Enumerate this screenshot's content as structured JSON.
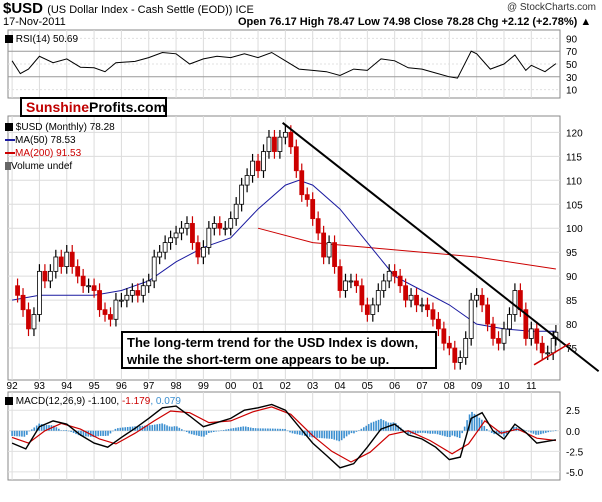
{
  "header": {
    "symbol": "$USD",
    "name": "(US Dollar Index - Cash Settle (EOD)) ICE",
    "date": "17-Nov-2011",
    "ohlc": "Open 76.17  High 78.47  Low 74.98  Close 78.28  Chg +2.12 (+2.78%) ▲",
    "source": "@ StockCharts.com"
  },
  "logo": {
    "part1": "Sunshine",
    "part2": "Profits.com"
  },
  "note": {
    "line1": "The long-term trend for the USD Index is down,",
    "line2": "while the short-term one appears to be up."
  },
  "rsi": {
    "label": "RSI(14) 50.69",
    "ticks": [
      "90",
      "70",
      "50",
      "30",
      "10"
    ]
  },
  "legend": {
    "main": "$USD (Monthly) 78.28",
    "ma50": "MA(50) 78.53",
    "ma200": "MA(200) 91.53",
    "volume": "Volume undef"
  },
  "macd": {
    "label": "MACD(12,26,9) -1.100, ",
    "signal": "-1.179",
    "hist": ", 0.079",
    "ticks": [
      "2.5",
      "0.0",
      "-2.5",
      "-5.0"
    ]
  },
  "colors": {
    "up": "#000000",
    "down": "#cc0000",
    "ma50": "#1a1aa0",
    "ma200": "#cc0000",
    "hist": "#3b8fd0",
    "trend": "#000000"
  },
  "chart_data": {
    "type": "candlestick",
    "title": "$USD (US Dollar Index - Cash Settle (EOD)) ICE",
    "x_ticks": [
      "92",
      "93",
      "94",
      "95",
      "96",
      "97",
      "98",
      "99",
      "00",
      "01",
      "02",
      "03",
      "04",
      "05",
      "06",
      "07",
      "08",
      "09",
      "10",
      "11"
    ],
    "y_ticks": [
      "120",
      "115",
      "110",
      "105",
      "100",
      "95",
      "90",
      "85",
      "80",
      "75"
    ],
    "ylim": [
      70,
      123
    ],
    "grid": true,
    "trend_line_down": [
      [
        2001.9,
        122
      ],
      [
        2012.0,
        76
      ]
    ],
    "trend_line_up": [
      [
        2011.1,
        71.5
      ],
      [
        2011.9,
        76
      ]
    ],
    "close_series": [
      {
        "x": 1992.0,
        "y": 88
      },
      {
        "x": 1992.2,
        "y": 86
      },
      {
        "x": 1992.4,
        "y": 83
      },
      {
        "x": 1992.6,
        "y": 79
      },
      {
        "x": 1992.8,
        "y": 82
      },
      {
        "x": 1993.0,
        "y": 91
      },
      {
        "x": 1993.2,
        "y": 89
      },
      {
        "x": 1993.4,
        "y": 91
      },
      {
        "x": 1993.6,
        "y": 94
      },
      {
        "x": 1993.8,
        "y": 92
      },
      {
        "x": 1994.0,
        "y": 95
      },
      {
        "x": 1994.2,
        "y": 92
      },
      {
        "x": 1994.4,
        "y": 90
      },
      {
        "x": 1994.6,
        "y": 88
      },
      {
        "x": 1994.8,
        "y": 88
      },
      {
        "x": 1995.0,
        "y": 87
      },
      {
        "x": 1995.2,
        "y": 83
      },
      {
        "x": 1995.4,
        "y": 82
      },
      {
        "x": 1995.6,
        "y": 81
      },
      {
        "x": 1995.8,
        "y": 85
      },
      {
        "x": 1996.0,
        "y": 85
      },
      {
        "x": 1996.2,
        "y": 86
      },
      {
        "x": 1996.4,
        "y": 87
      },
      {
        "x": 1996.6,
        "y": 86
      },
      {
        "x": 1996.8,
        "y": 88
      },
      {
        "x": 1997.0,
        "y": 89
      },
      {
        "x": 1997.2,
        "y": 94
      },
      {
        "x": 1997.4,
        "y": 95
      },
      {
        "x": 1997.6,
        "y": 97
      },
      {
        "x": 1997.8,
        "y": 98
      },
      {
        "x": 1998.0,
        "y": 99
      },
      {
        "x": 1998.2,
        "y": 100
      },
      {
        "x": 1998.4,
        "y": 101
      },
      {
        "x": 1998.6,
        "y": 97
      },
      {
        "x": 1998.8,
        "y": 94
      },
      {
        "x": 1999.0,
        "y": 96
      },
      {
        "x": 1999.2,
        "y": 100
      },
      {
        "x": 1999.4,
        "y": 101
      },
      {
        "x": 1999.6,
        "y": 100
      },
      {
        "x": 1999.8,
        "y": 100
      },
      {
        "x": 2000.0,
        "y": 102
      },
      {
        "x": 2000.2,
        "y": 105
      },
      {
        "x": 2000.4,
        "y": 109
      },
      {
        "x": 2000.6,
        "y": 111
      },
      {
        "x": 2000.8,
        "y": 114
      },
      {
        "x": 2001.0,
        "y": 112
      },
      {
        "x": 2001.2,
        "y": 116
      },
      {
        "x": 2001.4,
        "y": 119
      },
      {
        "x": 2001.6,
        "y": 116
      },
      {
        "x": 2001.8,
        "y": 119
      },
      {
        "x": 2002.0,
        "y": 120
      },
      {
        "x": 2002.2,
        "y": 117
      },
      {
        "x": 2002.4,
        "y": 112
      },
      {
        "x": 2002.6,
        "y": 107
      },
      {
        "x": 2002.8,
        "y": 106
      },
      {
        "x": 2003.0,
        "y": 102
      },
      {
        "x": 2003.2,
        "y": 99
      },
      {
        "x": 2003.4,
        "y": 94
      },
      {
        "x": 2003.6,
        "y": 97
      },
      {
        "x": 2003.8,
        "y": 92
      },
      {
        "x": 2004.0,
        "y": 87
      },
      {
        "x": 2004.2,
        "y": 89
      },
      {
        "x": 2004.4,
        "y": 89
      },
      {
        "x": 2004.6,
        "y": 88
      },
      {
        "x": 2004.8,
        "y": 84
      },
      {
        "x": 2005.0,
        "y": 82
      },
      {
        "x": 2005.2,
        "y": 84
      },
      {
        "x": 2005.4,
        "y": 87
      },
      {
        "x": 2005.6,
        "y": 89
      },
      {
        "x": 2005.8,
        "y": 91
      },
      {
        "x": 2006.0,
        "y": 90
      },
      {
        "x": 2006.2,
        "y": 88
      },
      {
        "x": 2006.4,
        "y": 85
      },
      {
        "x": 2006.6,
        "y": 86
      },
      {
        "x": 2006.8,
        "y": 84
      },
      {
        "x": 2007.0,
        "y": 84
      },
      {
        "x": 2007.2,
        "y": 83
      },
      {
        "x": 2007.4,
        "y": 81
      },
      {
        "x": 2007.6,
        "y": 79
      },
      {
        "x": 2007.8,
        "y": 76
      },
      {
        "x": 2008.0,
        "y": 75
      },
      {
        "x": 2008.2,
        "y": 72
      },
      {
        "x": 2008.4,
        "y": 73
      },
      {
        "x": 2008.6,
        "y": 77
      },
      {
        "x": 2008.8,
        "y": 85
      },
      {
        "x": 2009.0,
        "y": 86
      },
      {
        "x": 2009.2,
        "y": 84
      },
      {
        "x": 2009.4,
        "y": 80
      },
      {
        "x": 2009.6,
        "y": 77
      },
      {
        "x": 2009.8,
        "y": 76
      },
      {
        "x": 2010.0,
        "y": 79
      },
      {
        "x": 2010.2,
        "y": 82
      },
      {
        "x": 2010.4,
        "y": 87
      },
      {
        "x": 2010.6,
        "y": 83
      },
      {
        "x": 2010.8,
        "y": 77
      },
      {
        "x": 2011.0,
        "y": 79
      },
      {
        "x": 2011.2,
        "y": 76
      },
      {
        "x": 2011.4,
        "y": 74
      },
      {
        "x": 2011.6,
        "y": 74
      },
      {
        "x": 2011.8,
        "y": 77
      },
      {
        "x": 2011.9,
        "y": 78.3
      }
    ],
    "ma50": [
      {
        "x": 1992.0,
        "y": 85
      },
      {
        "x": 1993.0,
        "y": 86
      },
      {
        "x": 1994.0,
        "y": 86
      },
      {
        "x": 1995.0,
        "y": 86
      },
      {
        "x": 1996.0,
        "y": 87
      },
      {
        "x": 1997.0,
        "y": 89
      },
      {
        "x": 1998.0,
        "y": 93
      },
      {
        "x": 1999.0,
        "y": 96
      },
      {
        "x": 2000.0,
        "y": 98
      },
      {
        "x": 2001.0,
        "y": 104
      },
      {
        "x": 2002.0,
        "y": 109
      },
      {
        "x": 2002.5,
        "y": 110
      },
      {
        "x": 2003.0,
        "y": 109
      },
      {
        "x": 2004.0,
        "y": 104
      },
      {
        "x": 2005.0,
        "y": 97
      },
      {
        "x": 2006.0,
        "y": 90
      },
      {
        "x": 2007.0,
        "y": 87
      },
      {
        "x": 2008.0,
        "y": 84
      },
      {
        "x": 2009.0,
        "y": 80
      },
      {
        "x": 2010.0,
        "y": 79
      },
      {
        "x": 2011.0,
        "y": 78.5
      },
      {
        "x": 2011.9,
        "y": 78.5
      }
    ],
    "ma200": [
      {
        "x": 2001.0,
        "y": 100
      },
      {
        "x": 2003.0,
        "y": 97
      },
      {
        "x": 2005.0,
        "y": 96
      },
      {
        "x": 2007.0,
        "y": 95
      },
      {
        "x": 2009.0,
        "y": 94
      },
      {
        "x": 2011.9,
        "y": 91.5
      }
    ],
    "rsi": [
      {
        "x": 1992.0,
        "y": 55
      },
      {
        "x": 1992.3,
        "y": 35
      },
      {
        "x": 1992.6,
        "y": 42
      },
      {
        "x": 1993.0,
        "y": 62
      },
      {
        "x": 1993.5,
        "y": 52
      },
      {
        "x": 1994.0,
        "y": 58
      },
      {
        "x": 1994.5,
        "y": 45
      },
      {
        "x": 1995.0,
        "y": 44
      },
      {
        "x": 1995.4,
        "y": 38
      },
      {
        "x": 1995.8,
        "y": 52
      },
      {
        "x": 1996.5,
        "y": 54
      },
      {
        "x": 1997.0,
        "y": 60
      },
      {
        "x": 1997.5,
        "y": 68
      },
      {
        "x": 1998.0,
        "y": 66
      },
      {
        "x": 1998.5,
        "y": 50
      },
      {
        "x": 1999.0,
        "y": 58
      },
      {
        "x": 1999.5,
        "y": 62
      },
      {
        "x": 2000.0,
        "y": 60
      },
      {
        "x": 2000.5,
        "y": 66
      },
      {
        "x": 2001.0,
        "y": 60
      },
      {
        "x": 2001.5,
        "y": 68
      },
      {
        "x": 2002.0,
        "y": 55
      },
      {
        "x": 2002.5,
        "y": 42
      },
      {
        "x": 2003.0,
        "y": 40
      },
      {
        "x": 2003.5,
        "y": 38
      },
      {
        "x": 2004.0,
        "y": 32
      },
      {
        "x": 2004.5,
        "y": 42
      },
      {
        "x": 2005.0,
        "y": 40
      },
      {
        "x": 2005.5,
        "y": 58
      },
      {
        "x": 2006.0,
        "y": 55
      },
      {
        "x": 2006.5,
        "y": 44
      },
      {
        "x": 2007.0,
        "y": 42
      },
      {
        "x": 2007.5,
        "y": 36
      },
      {
        "x": 2008.0,
        "y": 30
      },
      {
        "x": 2008.3,
        "y": 28
      },
      {
        "x": 2008.8,
        "y": 70
      },
      {
        "x": 2009.0,
        "y": 66
      },
      {
        "x": 2009.5,
        "y": 42
      },
      {
        "x": 2010.0,
        "y": 50
      },
      {
        "x": 2010.4,
        "y": 64
      },
      {
        "x": 2010.8,
        "y": 40
      },
      {
        "x": 2011.0,
        "y": 48
      },
      {
        "x": 2011.5,
        "y": 38
      },
      {
        "x": 2011.9,
        "y": 50.7
      }
    ],
    "macd_line": [
      {
        "x": 1992.0,
        "y": -1.5
      },
      {
        "x": 1992.5,
        "y": -2.2
      },
      {
        "x": 1993.0,
        "y": 0.5
      },
      {
        "x": 1993.5,
        "y": 1.2
      },
      {
        "x": 1994.0,
        "y": 0.8
      },
      {
        "x": 1994.5,
        "y": -0.5
      },
      {
        "x": 1995.0,
        "y": -1.5
      },
      {
        "x": 1995.5,
        "y": -2.0
      },
      {
        "x": 1996.0,
        "y": -0.8
      },
      {
        "x": 1996.5,
        "y": 0.3
      },
      {
        "x": 1997.0,
        "y": 1.5
      },
      {
        "x": 1997.5,
        "y": 2.8
      },
      {
        "x": 1998.0,
        "y": 3.0
      },
      {
        "x": 1998.5,
        "y": 1.8
      },
      {
        "x": 1999.0,
        "y": 0.5
      },
      {
        "x": 1999.5,
        "y": 1.0
      },
      {
        "x": 2000.0,
        "y": 1.5
      },
      {
        "x": 2000.5,
        "y": 2.5
      },
      {
        "x": 2001.0,
        "y": 2.8
      },
      {
        "x": 2001.5,
        "y": 3.2
      },
      {
        "x": 2002.0,
        "y": 2.5
      },
      {
        "x": 2002.5,
        "y": 0.5
      },
      {
        "x": 2003.0,
        "y": -1.5
      },
      {
        "x": 2003.5,
        "y": -3.0
      },
      {
        "x": 2004.0,
        "y": -4.5
      },
      {
        "x": 2004.5,
        "y": -4.0
      },
      {
        "x": 2005.0,
        "y": -2.0
      },
      {
        "x": 2005.5,
        "y": 0.2
      },
      {
        "x": 2006.0,
        "y": 0.8
      },
      {
        "x": 2006.5,
        "y": -0.5
      },
      {
        "x": 2007.0,
        "y": -1.0
      },
      {
        "x": 2007.5,
        "y": -2.0
      },
      {
        "x": 2008.0,
        "y": -3.5
      },
      {
        "x": 2008.4,
        "y": -3.2
      },
      {
        "x": 2008.8,
        "y": 1.5
      },
      {
        "x": 2009.2,
        "y": 2.2
      },
      {
        "x": 2009.6,
        "y": 0.0
      },
      {
        "x": 2010.0,
        "y": -1.0
      },
      {
        "x": 2010.4,
        "y": 0.8
      },
      {
        "x": 2010.8,
        "y": -0.2
      },
      {
        "x": 2011.2,
        "y": -1.5
      },
      {
        "x": 2011.9,
        "y": -1.1
      }
    ],
    "macd_signal": [
      {
        "x": 1992.0,
        "y": -0.8
      },
      {
        "x": 1992.6,
        "y": -1.5
      },
      {
        "x": 1993.2,
        "y": 0.0
      },
      {
        "x": 1993.8,
        "y": 0.9
      },
      {
        "x": 1994.5,
        "y": 0.2
      },
      {
        "x": 1995.2,
        "y": -1.0
      },
      {
        "x": 1995.8,
        "y": -1.6
      },
      {
        "x": 1996.5,
        "y": -0.3
      },
      {
        "x": 1997.2,
        "y": 1.2
      },
      {
        "x": 1997.8,
        "y": 2.4
      },
      {
        "x": 1998.5,
        "y": 2.2
      },
      {
        "x": 1999.2,
        "y": 1.0
      },
      {
        "x": 2000.0,
        "y": 1.2
      },
      {
        "x": 2000.8,
        "y": 2.3
      },
      {
        "x": 2001.5,
        "y": 2.9
      },
      {
        "x": 2002.2,
        "y": 2.0
      },
      {
        "x": 2003.0,
        "y": -0.6
      },
      {
        "x": 2003.7,
        "y": -2.5
      },
      {
        "x": 2004.4,
        "y": -3.8
      },
      {
        "x": 2005.1,
        "y": -2.6
      },
      {
        "x": 2005.8,
        "y": -0.5
      },
      {
        "x": 2006.5,
        "y": 0.0
      },
      {
        "x": 2007.3,
        "y": -1.2
      },
      {
        "x": 2008.1,
        "y": -2.8
      },
      {
        "x": 2008.7,
        "y": -1.6
      },
      {
        "x": 2009.3,
        "y": 1.2
      },
      {
        "x": 2009.9,
        "y": -0.3
      },
      {
        "x": 2010.5,
        "y": 0.2
      },
      {
        "x": 2011.2,
        "y": -0.9
      },
      {
        "x": 2011.9,
        "y": -1.18
      }
    ]
  }
}
